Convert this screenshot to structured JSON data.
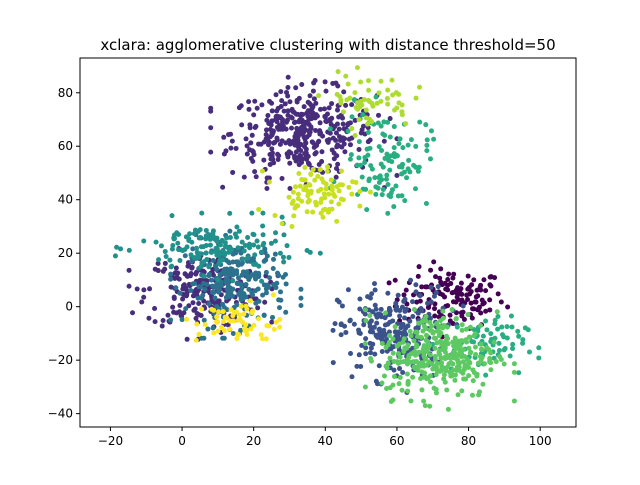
{
  "chart_data": {
    "type": "scatter",
    "title": "xclara: agglomerative clustering with distance threshold=50",
    "xlabel": "",
    "ylabel": "",
    "xlim": [
      -28.5,
      110
    ],
    "ylim": [
      -45,
      93
    ],
    "xticks": [
      -20,
      0,
      20,
      40,
      60,
      80,
      100
    ],
    "yticks": [
      -40,
      -20,
      0,
      20,
      40,
      60,
      80
    ],
    "grid": false,
    "legend": "none",
    "cluster_colors": [
      "#440154",
      "#472d7b",
      "#3b528b",
      "#2c728e",
      "#21918c",
      "#28ae80",
      "#5ec962",
      "#addc30",
      "#c8e020",
      "#fde725"
    ],
    "series": [
      {
        "color_index": 0,
        "n": 140,
        "center": [
          75,
          3
        ],
        "spread": [
          7.5,
          5.5
        ]
      },
      {
        "color_index": 1,
        "n": 380,
        "center": [
          34,
          65
        ],
        "spread": [
          10,
          8
        ]
      },
      {
        "color_index": 1,
        "n": 220,
        "center": [
          6,
          6
        ],
        "spread": [
          8,
          7
        ]
      },
      {
        "color_index": 2,
        "n": 240,
        "center": [
          59,
          -10
        ],
        "spread": [
          7.5,
          8.5
        ]
      },
      {
        "color_index": 3,
        "n": 230,
        "center": [
          15,
          9
        ],
        "spread": [
          7,
          8
        ]
      },
      {
        "color_index": 4,
        "n": 150,
        "center": [
          10,
          22
        ],
        "spread": [
          11,
          5
        ]
      },
      {
        "color_index": 5,
        "n": 110,
        "center": [
          57,
          55
        ],
        "spread": [
          6,
          9
        ]
      },
      {
        "color_index": 5,
        "n": 70,
        "center": [
          84,
          -14
        ],
        "spread": [
          6,
          5
        ]
      },
      {
        "color_index": 6,
        "n": 320,
        "center": [
          72,
          -18
        ],
        "spread": [
          8,
          8
        ]
      },
      {
        "color_index": 7,
        "n": 55,
        "center": [
          52,
          77
        ],
        "spread": [
          6,
          5
        ]
      },
      {
        "color_index": 8,
        "n": 90,
        "center": [
          37,
          43
        ],
        "spread": [
          6,
          5
        ]
      },
      {
        "color_index": 9,
        "n": 60,
        "center": [
          16,
          -6
        ],
        "spread": [
          6,
          4
        ]
      }
    ]
  }
}
